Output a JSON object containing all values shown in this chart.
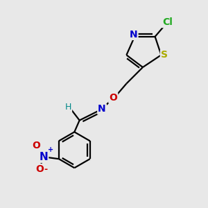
{
  "background_color": "#e8e8e8",
  "bond_color": "black",
  "bond_width": 1.6,
  "atoms": {
    "Cl": {
      "color": "#22aa22",
      "fontsize": 10,
      "fontweight": "bold"
    },
    "S": {
      "color": "#aaaa00",
      "fontsize": 10,
      "fontweight": "bold"
    },
    "N": {
      "color": "#0000cc",
      "fontsize": 10,
      "fontweight": "bold"
    },
    "O": {
      "color": "#cc0000",
      "fontsize": 10,
      "fontweight": "bold"
    },
    "H": {
      "color": "#008888",
      "fontsize": 9,
      "fontweight": "normal"
    }
  },
  "figsize": [
    3.0,
    3.0
  ],
  "dpi": 100,
  "xlim": [
    0,
    10
  ],
  "ylim": [
    0,
    10
  ]
}
